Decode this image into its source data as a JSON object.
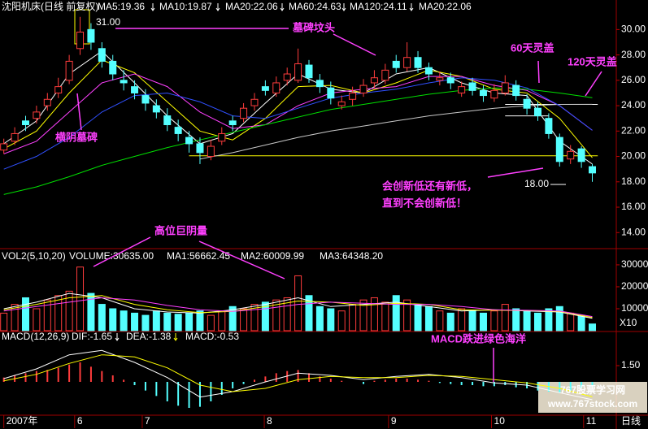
{
  "chart_data": [
    {
      "type": "candlestick",
      "title": "沈阳机床(日线 前复权)",
      "x": [
        0,
        2,
        4,
        6,
        8,
        10,
        12,
        14,
        16,
        18,
        20,
        22,
        24,
        26,
        28,
        30,
        32,
        34,
        36,
        38,
        40,
        42,
        44,
        46,
        48,
        50,
        52,
        54,
        56,
        58,
        60,
        62,
        64,
        66,
        68,
        70,
        72,
        74,
        76,
        78,
        80,
        82,
        84,
        86,
        88,
        90,
        92,
        94,
        96,
        98,
        100,
        102,
        104,
        106,
        108
      ],
      "open": [
        20.5,
        21.2,
        22.8,
        23.0,
        24.0,
        25.0,
        26.0,
        28.5,
        30.0,
        28.5,
        27.5,
        26.0,
        25.5,
        24.8,
        24.0,
        23.2,
        22.3,
        21.5,
        21.0,
        20.0,
        21.2,
        22.8,
        23.0,
        24.0,
        25.5,
        25.0,
        26.0,
        26.0,
        27.2,
        26.0,
        25.4,
        24.0,
        24.5,
        25.0,
        25.8,
        26.0,
        27.5,
        27.0,
        27.8,
        27.0,
        26.0,
        26.2,
        25.0,
        25.8,
        25.2,
        24.6,
        25.0,
        25.6,
        24.5,
        23.8,
        23.0,
        21.5,
        19.8,
        20.6,
        19.2
      ],
      "high": [
        21.4,
        22.3,
        23.2,
        24.0,
        25.0,
        26.2,
        28.0,
        31.0,
        30.5,
        29.0,
        28.0,
        26.8,
        26.0,
        25.3,
        24.5,
        23.8,
        22.9,
        22.0,
        21.5,
        21.3,
        22.3,
        23.2,
        24.2,
        25.0,
        26.0,
        26.3,
        27.0,
        28.5,
        27.6,
        26.5,
        25.9,
        24.8,
        25.5,
        26.1,
        26.8,
        27.3,
        28.0,
        29.0,
        28.3,
        27.4,
        26.7,
        26.6,
        25.9,
        26.2,
        25.6,
        25.7,
        26.4,
        26.0,
        24.9,
        24.3,
        23.4,
        21.8,
        20.9,
        20.8,
        19.4
      ],
      "low": [
        20.2,
        20.9,
        22.0,
        22.6,
        23.6,
        24.6,
        25.7,
        28.0,
        28.4,
        27.0,
        26.0,
        25.2,
        24.5,
        23.6,
        23.0,
        22.0,
        21.2,
        20.3,
        19.4,
        19.7,
        20.9,
        22.0,
        22.7,
        23.6,
        24.8,
        24.7,
        25.6,
        25.8,
        25.8,
        25.0,
        24.1,
        23.7,
        24.0,
        24.7,
        25.4,
        25.7,
        26.6,
        26.7,
        26.6,
        26.0,
        25.6,
        25.3,
        24.7,
        24.8,
        24.3,
        24.3,
        24.8,
        24.4,
        23.3,
        22.8,
        21.4,
        19.2,
        19.4,
        19.1,
        18.0
      ],
      "close": [
        21.0,
        21.8,
        22.5,
        23.5,
        24.5,
        25.5,
        27.5,
        29.8,
        29.0,
        27.5,
        26.5,
        25.8,
        25.0,
        24.2,
        23.5,
        22.5,
        21.8,
        21.0,
        20.3,
        20.8,
        21.8,
        22.5,
        23.8,
        24.5,
        25.2,
        25.8,
        26.5,
        27.3,
        26.2,
        25.5,
        24.6,
        24.3,
        25.0,
        25.6,
        26.2,
        26.8,
        27.0,
        27.8,
        27.0,
        26.5,
        26.2,
        25.8,
        25.5,
        25.2,
        24.8,
        25.2,
        25.8,
        24.8,
        23.8,
        23.2,
        21.8,
        19.6,
        20.4,
        19.6,
        18.7
      ],
      "up_color": "#ff3c3c",
      "down_color": "#54ffff",
      "series": [
        {
          "name": "MA5:19.36",
          "color": "#ffffff",
          "x": [
            0,
            6,
            12,
            18,
            24,
            30,
            36,
            42,
            48,
            54,
            60,
            66,
            72,
            78,
            84,
            90,
            96,
            102,
            108
          ],
          "values": [
            21.0,
            22.8,
            26.5,
            28.3,
            25.8,
            23.2,
            21.0,
            21.8,
            24.2,
            26.5,
            25.3,
            25.0,
            26.5,
            27.0,
            25.8,
            25.0,
            24.8,
            21.2,
            19.4
          ]
        },
        {
          "name": "MA10:19.87",
          "color": "#ffff00",
          "x": [
            0,
            6,
            12,
            18,
            24,
            30,
            36,
            42,
            48,
            54,
            60,
            66,
            72,
            78,
            84,
            90,
            96,
            102,
            108
          ],
          "values": [
            20.6,
            22.0,
            25.0,
            27.6,
            26.6,
            24.3,
            22.0,
            21.3,
            23.0,
            25.5,
            25.6,
            25.0,
            25.8,
            26.8,
            26.3,
            25.3,
            25.0,
            23.0,
            19.9
          ]
        },
        {
          "name": "MA20:22.06",
          "color": "#ff40ff",
          "x": [
            0,
            6,
            12,
            18,
            24,
            30,
            36,
            42,
            48,
            54,
            60,
            66,
            72,
            78,
            84,
            90,
            96,
            102,
            108
          ],
          "values": [
            20.2,
            21.2,
            23.5,
            25.8,
            26.5,
            25.5,
            23.5,
            22.2,
            22.5,
            24.0,
            25.0,
            25.3,
            25.5,
            26.3,
            26.3,
            25.6,
            25.2,
            24.0,
            22.06
          ]
        },
        {
          "name": "MA60:24.63",
          "color": "#00e000",
          "x": [
            0,
            6,
            12,
            18,
            24,
            30,
            36,
            42,
            48,
            54,
            60,
            66,
            72,
            78,
            84,
            90,
            96,
            102,
            108
          ],
          "values": [
            17.0,
            17.6,
            18.4,
            19.3,
            20.0,
            20.7,
            21.3,
            21.9,
            22.5,
            23.1,
            23.7,
            24.1,
            24.5,
            24.9,
            25.2,
            25.4,
            25.3,
            25.0,
            24.63
          ]
        },
        {
          "name": "MA120:24.11",
          "color": "#c8c8c8",
          "x": [
            0,
            6,
            12,
            18,
            24,
            30,
            36,
            42,
            48,
            54,
            60,
            66,
            72,
            78,
            84,
            90,
            96,
            102,
            108
          ],
          "values": [
            null,
            null,
            null,
            null,
            null,
            null,
            19.8,
            20.3,
            20.9,
            21.5,
            22.0,
            22.4,
            22.8,
            23.2,
            23.5,
            23.8,
            24.0,
            24.1,
            24.11
          ]
        },
        {
          "name": "MA20:22.06",
          "color": "#3050ff",
          "x": [
            0,
            6,
            12,
            18,
            24,
            30,
            36,
            42,
            48,
            54,
            60,
            66,
            72,
            78,
            84,
            90,
            96,
            102,
            108
          ],
          "values": [
            19.0,
            20.0,
            21.5,
            23.5,
            24.8,
            25.0,
            24.3,
            23.2,
            23.0,
            23.8,
            24.6,
            25.0,
            25.3,
            25.8,
            26.2,
            26.0,
            25.4,
            24.0,
            22.06
          ]
        }
      ],
      "reference_lines": [
        {
          "y": 20.05,
          "x": [
            34,
            109
          ],
          "color": "#ffff00"
        },
        {
          "y": 24.1,
          "x": [
            92,
            109
          ],
          "color": "#ffffff"
        },
        {
          "y": 23.2,
          "x": [
            92,
            100
          ],
          "color": "#ffffff"
        }
      ],
      "xlim": [
        -0.7,
        112.4
      ],
      "ylim": [
        12.8,
        32.2
      ],
      "yticks": [
        {
          "value": 30,
          "label": "30.00"
        },
        {
          "value": 28,
          "label": "28.00"
        },
        {
          "value": 26,
          "label": "26.00"
        },
        {
          "value": 24,
          "label": "24.00"
        },
        {
          "value": 22,
          "label": "22.00"
        },
        {
          "value": 20,
          "label": "20.00"
        },
        {
          "value": 18,
          "label": "18.00"
        },
        {
          "value": 16,
          "label": "16.00"
        },
        {
          "value": 14,
          "label": "14.00"
        }
      ],
      "annotations": [
        "31.00",
        "墓碑坟头",
        "60天灵盖",
        "120天灵盖",
        "横阴墓碑",
        "会创新低还有新低，",
        "直到不会创新低！",
        "18.00"
      ]
    },
    {
      "type": "volume",
      "title": "VOL2(5,10,20)",
      "volume_label": "VOLUME:30635.00",
      "axis_note": "X10",
      "x": [
        0,
        2,
        4,
        6,
        8,
        10,
        12,
        14,
        16,
        18,
        20,
        22,
        24,
        26,
        28,
        30,
        32,
        34,
        36,
        38,
        40,
        42,
        44,
        46,
        48,
        50,
        52,
        54,
        56,
        58,
        60,
        62,
        64,
        66,
        68,
        70,
        72,
        74,
        76,
        78,
        80,
        82,
        84,
        86,
        88,
        90,
        92,
        94,
        96,
        98,
        100,
        102,
        104,
        106,
        108
      ],
      "values": [
        8000,
        12000,
        15000,
        10000,
        14000,
        16000,
        18000,
        29000,
        17000,
        12000,
        10000,
        9000,
        8000,
        7000,
        9000,
        8000,
        7500,
        8000,
        9000,
        7000,
        9000,
        11000,
        10000,
        12000,
        13000,
        14000,
        15000,
        25000,
        16000,
        11000,
        10000,
        9000,
        12000,
        14000,
        15000,
        13000,
        16000,
        14000,
        12000,
        11000,
        9000,
        8000,
        10000,
        9000,
        8000,
        9000,
        12000,
        10000,
        9000,
        8000,
        10000,
        11000,
        8000,
        7000,
        3064
      ],
      "series": [
        {
          "name": "MA1:56662.45",
          "color": "#ffffff",
          "x": [
            0,
            6,
            12,
            18,
            24,
            30,
            36,
            42,
            48,
            54,
            60,
            66,
            72,
            78,
            84,
            90,
            96,
            102,
            108
          ],
          "values": [
            10000,
            13000,
            17000,
            15000,
            10000,
            8500,
            8000,
            9500,
            12000,
            15000,
            11000,
            12000,
            13000,
            11000,
            9000,
            9500,
            9000,
            8500,
            5666
          ]
        },
        {
          "name": "MA2:60009.99",
          "color": "#ffff00",
          "x": [
            0,
            6,
            12,
            18,
            24,
            30,
            36,
            42,
            48,
            54,
            60,
            66,
            72,
            78,
            84,
            90,
            96,
            102,
            108
          ],
          "values": [
            9500,
            12000,
            15000,
            16000,
            12000,
            9500,
            8200,
            8800,
            11000,
            13500,
            13000,
            11500,
            12500,
            12000,
            9500,
            9300,
            9200,
            8800,
            6001
          ]
        },
        {
          "name": "MA3:64348.20",
          "color": "#ff40ff",
          "x": [
            0,
            6,
            12,
            18,
            24,
            30,
            36,
            42,
            48,
            54,
            60,
            66,
            72,
            78,
            84,
            90,
            96,
            102,
            108
          ],
          "values": [
            9000,
            11000,
            13000,
            15000,
            14000,
            11500,
            9500,
            8800,
            10000,
            12000,
            13000,
            12500,
            12000,
            12000,
            11000,
            9500,
            9300,
            9000,
            6435
          ]
        }
      ],
      "xlim": [
        -0.7,
        112.4
      ],
      "ylim": [
        0,
        35900
      ],
      "yticks": [
        30000,
        20000,
        10000
      ],
      "annotations": [
        "高位巨阴量"
      ]
    },
    {
      "type": "macd",
      "title": "MACD(12,26,9)",
      "x": [
        0,
        2,
        4,
        6,
        8,
        10,
        12,
        14,
        16,
        18,
        20,
        22,
        24,
        26,
        28,
        30,
        32,
        34,
        36,
        38,
        40,
        42,
        44,
        46,
        48,
        50,
        52,
        54,
        56,
        58,
        60,
        62,
        64,
        66,
        68,
        70,
        72,
        74,
        76,
        78,
        80,
        82,
        84,
        86,
        88,
        90,
        92,
        94,
        96,
        98,
        100,
        102,
        104,
        106,
        108
      ],
      "values": [
        0.4,
        0.6,
        0.8,
        1.0,
        1.1,
        1.3,
        1.6,
        1.8,
        1.4,
        1.0,
        0.6,
        0.2,
        -0.3,
        -0.8,
        -1.3,
        -1.8,
        -2.2,
        -2.4,
        -2.3,
        -1.8,
        -1.2,
        -0.6,
        -0.2,
        0.2,
        0.5,
        0.8,
        1.0,
        1.1,
        0.8,
        0.5,
        0.3,
        0.1,
        0.0,
        -0.2,
        0.1,
        0.2,
        0.3,
        0.3,
        0.2,
        0.1,
        -0.1,
        -0.2,
        -0.3,
        -0.3,
        -0.4,
        -0.4,
        -0.3,
        -0.5,
        -0.6,
        -0.8,
        -0.9,
        -1.0,
        -0.8,
        -0.6,
        -0.53
      ],
      "values_label": "MACD:-0.53",
      "values_color": "#ff40ff",
      "series": [
        {
          "name": "DIF:-1.65",
          "color": "#ffffff",
          "x": [
            0,
            6,
            12,
            18,
            24,
            30,
            36,
            42,
            48,
            54,
            60,
            66,
            72,
            78,
            84,
            90,
            96,
            102,
            108
          ],
          "values": [
            0.3,
            1.2,
            2.5,
            2.9,
            1.8,
            0.4,
            -1.4,
            -0.9,
            0.0,
            0.8,
            0.6,
            0.2,
            0.5,
            0.7,
            0.4,
            -0.1,
            -0.3,
            -1.0,
            -1.65
          ]
        },
        {
          "name": "DEA:-1.38",
          "color": "#ffff00",
          "x": [
            0,
            6,
            12,
            18,
            24,
            30,
            36,
            42,
            48,
            54,
            60,
            66,
            72,
            78,
            84,
            90,
            96,
            102,
            108
          ],
          "values": [
            0.1,
            0.7,
            1.7,
            2.5,
            2.3,
            1.3,
            -0.3,
            -0.9,
            -0.6,
            0.2,
            0.5,
            0.4,
            0.4,
            0.6,
            0.5,
            0.2,
            -0.1,
            -0.6,
            -1.38
          ]
        }
      ],
      "xlim": [
        -0.7,
        112.4
      ],
      "ylim": [
        -3.0,
        4.5
      ],
      "yticks": [
        {
          "value": 1.5,
          "label": "1.50"
        }
      ],
      "xticks": [
        {
          "value": 0,
          "label": "2007年"
        },
        {
          "value": 13,
          "label": "6"
        },
        {
          "value": 25.4,
          "label": "7"
        },
        {
          "value": 47.8,
          "label": "8"
        },
        {
          "value": 70.6,
          "label": "9"
        },
        {
          "value": 89.5,
          "label": "10"
        },
        {
          "value": 106.4,
          "label": "11"
        }
      ],
      "period_label": "日线",
      "annotations": [
        "MACD跌进绿色海洋"
      ],
      "watermark": [
        "767股票学习网",
        "www.767stock.com"
      ]
    }
  ]
}
